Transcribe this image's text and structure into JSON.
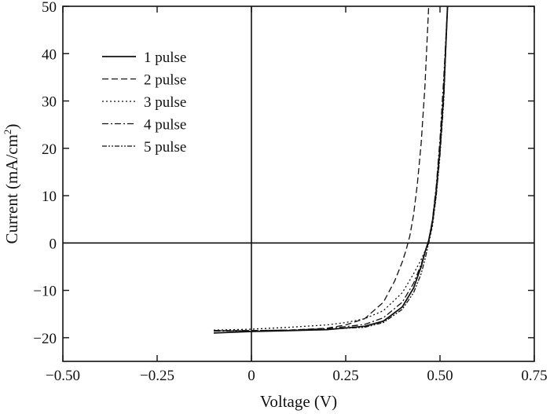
{
  "chart_data": {
    "type": "line",
    "xlabel": "Voltage (V)",
    "ylabel_main": "Current (mA/cm",
    "ylabel_sup": "2",
    "ylabel_close": ")",
    "xlim": [
      -0.5,
      0.75
    ],
    "ylim": [
      -25,
      50
    ],
    "x_ticks": [
      -0.5,
      -0.25,
      0,
      0.25,
      0.5,
      0.75
    ],
    "x_tick_labels": [
      "−0.50",
      "−0.25",
      "0",
      "0.25",
      "0.50",
      "0.75"
    ],
    "y_ticks": [
      -20,
      -10,
      0,
      10,
      20,
      30,
      40,
      50
    ],
    "y_tick_labels": [
      "−20",
      "−10",
      "0",
      "10",
      "20",
      "30",
      "40",
      "50"
    ],
    "grid": false,
    "legend_position": "top-left",
    "series": [
      {
        "name": "1 pulse",
        "dash": "solid",
        "x": [
          -0.1,
          0.0,
          0.1,
          0.2,
          0.3,
          0.35,
          0.4,
          0.43,
          0.45,
          0.46,
          0.47,
          0.48,
          0.49,
          0.5,
          0.51,
          0.52
        ],
        "y": [
          -19.0,
          -18.7,
          -18.5,
          -18.3,
          -17.6,
          -16.5,
          -13.5,
          -9.5,
          -5.0,
          -2.0,
          0.5,
          4.5,
          11.0,
          20.0,
          32.0,
          50.0
        ]
      },
      {
        "name": "2 pulse",
        "dash": "dashed",
        "x": [
          -0.1,
          0.0,
          0.1,
          0.2,
          0.25,
          0.3,
          0.35,
          0.38,
          0.4,
          0.41,
          0.42,
          0.43,
          0.44,
          0.45,
          0.46,
          0.47
        ],
        "y": [
          -18.5,
          -18.5,
          -18.4,
          -18.0,
          -17.3,
          -16.0,
          -12.5,
          -8.0,
          -4.0,
          -1.5,
          1.5,
          6.0,
          12.5,
          21.0,
          33.0,
          50.0
        ]
      },
      {
        "name": "3 pulse",
        "dash": "dotted",
        "x": [
          -0.1,
          0.0,
          0.1,
          0.2,
          0.25,
          0.3,
          0.35,
          0.4,
          0.43,
          0.45,
          0.47,
          0.48,
          0.49,
          0.5,
          0.51,
          0.52
        ],
        "y": [
          -18.4,
          -18.2,
          -17.8,
          -17.3,
          -16.8,
          -16.0,
          -14.3,
          -10.5,
          -6.5,
          -3.5,
          0.0,
          3.5,
          10.0,
          19.0,
          31.0,
          50.0
        ]
      },
      {
        "name": "4 pulse",
        "dash": "dashdot",
        "x": [
          -0.1,
          0.0,
          0.1,
          0.2,
          0.3,
          0.35,
          0.4,
          0.43,
          0.45,
          0.46,
          0.47,
          0.48,
          0.49,
          0.5,
          0.51,
          0.52
        ],
        "y": [
          -18.6,
          -18.5,
          -18.4,
          -18.1,
          -17.2,
          -15.8,
          -12.5,
          -8.5,
          -4.5,
          -2.0,
          0.5,
          5.0,
          12.0,
          22.0,
          35.0,
          50.0
        ]
      },
      {
        "name": "5 pulse",
        "dash": "dashdotdot",
        "x": [
          -0.1,
          0.0,
          0.1,
          0.2,
          0.3,
          0.35,
          0.4,
          0.43,
          0.45,
          0.46,
          0.47,
          0.48,
          0.49,
          0.5,
          0.51,
          0.52
        ],
        "y": [
          -18.5,
          -18.6,
          -18.4,
          -18.2,
          -17.8,
          -16.8,
          -14.0,
          -10.5,
          -6.5,
          -3.5,
          0.0,
          4.0,
          10.0,
          18.5,
          30.0,
          50.0
        ]
      }
    ]
  }
}
